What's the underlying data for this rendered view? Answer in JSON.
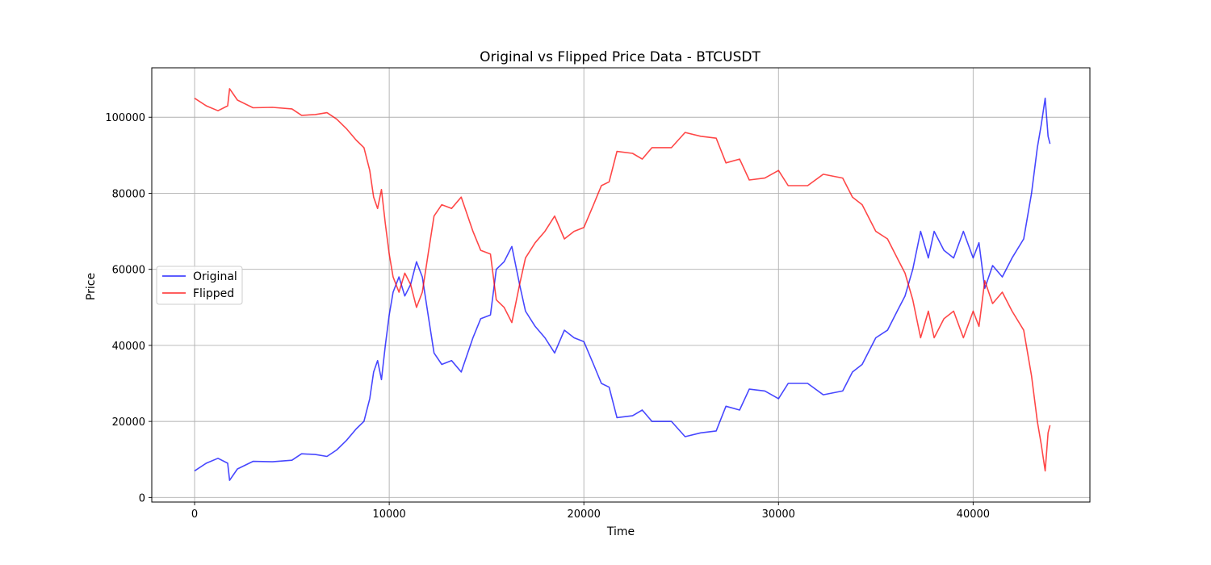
{
  "chart_data": {
    "type": "line",
    "title": "Original vs Flipped Price Data - BTCUSDT",
    "xlabel": "Time",
    "ylabel": "Price",
    "xlim": [
      -2200,
      46000
    ],
    "ylim": [
      -1200,
      113000
    ],
    "x_ticks": [
      0,
      10000,
      20000,
      30000,
      40000
    ],
    "y_ticks": [
      0,
      20000,
      40000,
      60000,
      80000,
      100000
    ],
    "grid": true,
    "legend_position": "center-left",
    "series": [
      {
        "name": "Original",
        "color": "#0000ff",
        "points": [
          [
            0,
            7000
          ],
          [
            600,
            9000
          ],
          [
            1200,
            10300
          ],
          [
            1700,
            9000
          ],
          [
            1800,
            4500
          ],
          [
            2200,
            7500
          ],
          [
            3000,
            9500
          ],
          [
            4000,
            9400
          ],
          [
            5000,
            9800
          ],
          [
            5500,
            11500
          ],
          [
            6200,
            11300
          ],
          [
            6800,
            10800
          ],
          [
            7300,
            12500
          ],
          [
            7800,
            15000
          ],
          [
            8300,
            18000
          ],
          [
            8700,
            20000
          ],
          [
            9000,
            26000
          ],
          [
            9200,
            33000
          ],
          [
            9400,
            36000
          ],
          [
            9600,
            31000
          ],
          [
            9800,
            40000
          ],
          [
            10000,
            48000
          ],
          [
            10200,
            54000
          ],
          [
            10500,
            58000
          ],
          [
            10800,
            53000
          ],
          [
            11100,
            56000
          ],
          [
            11400,
            62000
          ],
          [
            11700,
            58000
          ],
          [
            12000,
            48000
          ],
          [
            12300,
            38000
          ],
          [
            12700,
            35000
          ],
          [
            13200,
            36000
          ],
          [
            13700,
            33000
          ],
          [
            14300,
            42000
          ],
          [
            14700,
            47000
          ],
          [
            15200,
            48000
          ],
          [
            15500,
            60000
          ],
          [
            15900,
            62000
          ],
          [
            16300,
            66000
          ],
          [
            16700,
            56000
          ],
          [
            17000,
            49000
          ],
          [
            17500,
            45000
          ],
          [
            18000,
            42000
          ],
          [
            18500,
            38000
          ],
          [
            19000,
            44000
          ],
          [
            19500,
            42000
          ],
          [
            20000,
            41000
          ],
          [
            20500,
            35000
          ],
          [
            20900,
            30000
          ],
          [
            21300,
            29000
          ],
          [
            21700,
            21000
          ],
          [
            22500,
            21500
          ],
          [
            23000,
            23000
          ],
          [
            23500,
            20000
          ],
          [
            24500,
            20000
          ],
          [
            25200,
            16000
          ],
          [
            26000,
            17000
          ],
          [
            26800,
            17500
          ],
          [
            27300,
            24000
          ],
          [
            28000,
            23000
          ],
          [
            28500,
            28500
          ],
          [
            29300,
            28000
          ],
          [
            30000,
            26000
          ],
          [
            30500,
            30000
          ],
          [
            31500,
            30000
          ],
          [
            32300,
            27000
          ],
          [
            33300,
            28000
          ],
          [
            33800,
            33000
          ],
          [
            34300,
            35000
          ],
          [
            35000,
            42000
          ],
          [
            35600,
            44000
          ],
          [
            36100,
            49000
          ],
          [
            36500,
            53000
          ],
          [
            36900,
            60000
          ],
          [
            37300,
            70000
          ],
          [
            37700,
            63000
          ],
          [
            38000,
            70000
          ],
          [
            38500,
            65000
          ],
          [
            39000,
            63000
          ],
          [
            39500,
            70000
          ],
          [
            40000,
            63000
          ],
          [
            40300,
            67000
          ],
          [
            40600,
            55000
          ],
          [
            41000,
            61000
          ],
          [
            41500,
            58000
          ],
          [
            42000,
            63000
          ],
          [
            42600,
            68000
          ],
          [
            43000,
            80000
          ],
          [
            43300,
            92000
          ],
          [
            43500,
            98000
          ],
          [
            43700,
            105000
          ],
          [
            43850,
            95000
          ],
          [
            43950,
            93000
          ]
        ]
      },
      {
        "name": "Flipped",
        "color": "#ff0000",
        "points": [
          [
            0,
            105000
          ],
          [
            600,
            103000
          ],
          [
            1200,
            101700
          ],
          [
            1700,
            103000
          ],
          [
            1800,
            107500
          ],
          [
            2200,
            104500
          ],
          [
            3000,
            102500
          ],
          [
            4000,
            102600
          ],
          [
            5000,
            102200
          ],
          [
            5500,
            100500
          ],
          [
            6200,
            100700
          ],
          [
            6800,
            101200
          ],
          [
            7300,
            99500
          ],
          [
            7800,
            97000
          ],
          [
            8300,
            94000
          ],
          [
            8700,
            92000
          ],
          [
            9000,
            86000
          ],
          [
            9200,
            79000
          ],
          [
            9400,
            76000
          ],
          [
            9600,
            81000
          ],
          [
            9800,
            72000
          ],
          [
            10000,
            64000
          ],
          [
            10200,
            58000
          ],
          [
            10500,
            54000
          ],
          [
            10800,
            59000
          ],
          [
            11100,
            56000
          ],
          [
            11400,
            50000
          ],
          [
            11700,
            54000
          ],
          [
            12000,
            64000
          ],
          [
            12300,
            74000
          ],
          [
            12700,
            77000
          ],
          [
            13200,
            76000
          ],
          [
            13700,
            79000
          ],
          [
            14300,
            70000
          ],
          [
            14700,
            65000
          ],
          [
            15200,
            64000
          ],
          [
            15500,
            52000
          ],
          [
            15900,
            50000
          ],
          [
            16300,
            46000
          ],
          [
            16700,
            56000
          ],
          [
            17000,
            63000
          ],
          [
            17500,
            67000
          ],
          [
            18000,
            70000
          ],
          [
            18500,
            74000
          ],
          [
            19000,
            68000
          ],
          [
            19500,
            70000
          ],
          [
            20000,
            71000
          ],
          [
            20500,
            77000
          ],
          [
            20900,
            82000
          ],
          [
            21300,
            83000
          ],
          [
            21700,
            91000
          ],
          [
            22500,
            90500
          ],
          [
            23000,
            89000
          ],
          [
            23500,
            92000
          ],
          [
            24500,
            92000
          ],
          [
            25200,
            96000
          ],
          [
            26000,
            95000
          ],
          [
            26800,
            94500
          ],
          [
            27300,
            88000
          ],
          [
            28000,
            89000
          ],
          [
            28500,
            83500
          ],
          [
            29300,
            84000
          ],
          [
            30000,
            86000
          ],
          [
            30500,
            82000
          ],
          [
            31500,
            82000
          ],
          [
            32300,
            85000
          ],
          [
            33300,
            84000
          ],
          [
            33800,
            79000
          ],
          [
            34300,
            77000
          ],
          [
            35000,
            70000
          ],
          [
            35600,
            68000
          ],
          [
            36100,
            63000
          ],
          [
            36500,
            59000
          ],
          [
            36900,
            52000
          ],
          [
            37300,
            42000
          ],
          [
            37700,
            49000
          ],
          [
            38000,
            42000
          ],
          [
            38500,
            47000
          ],
          [
            39000,
            49000
          ],
          [
            39500,
            42000
          ],
          [
            40000,
            49000
          ],
          [
            40300,
            45000
          ],
          [
            40600,
            57000
          ],
          [
            41000,
            51000
          ],
          [
            41500,
            54000
          ],
          [
            42000,
            49000
          ],
          [
            42600,
            44000
          ],
          [
            43000,
            32000
          ],
          [
            43300,
            20000
          ],
          [
            43500,
            14000
          ],
          [
            43700,
            7000
          ],
          [
            43850,
            17000
          ],
          [
            43950,
            19000
          ]
        ]
      }
    ]
  }
}
